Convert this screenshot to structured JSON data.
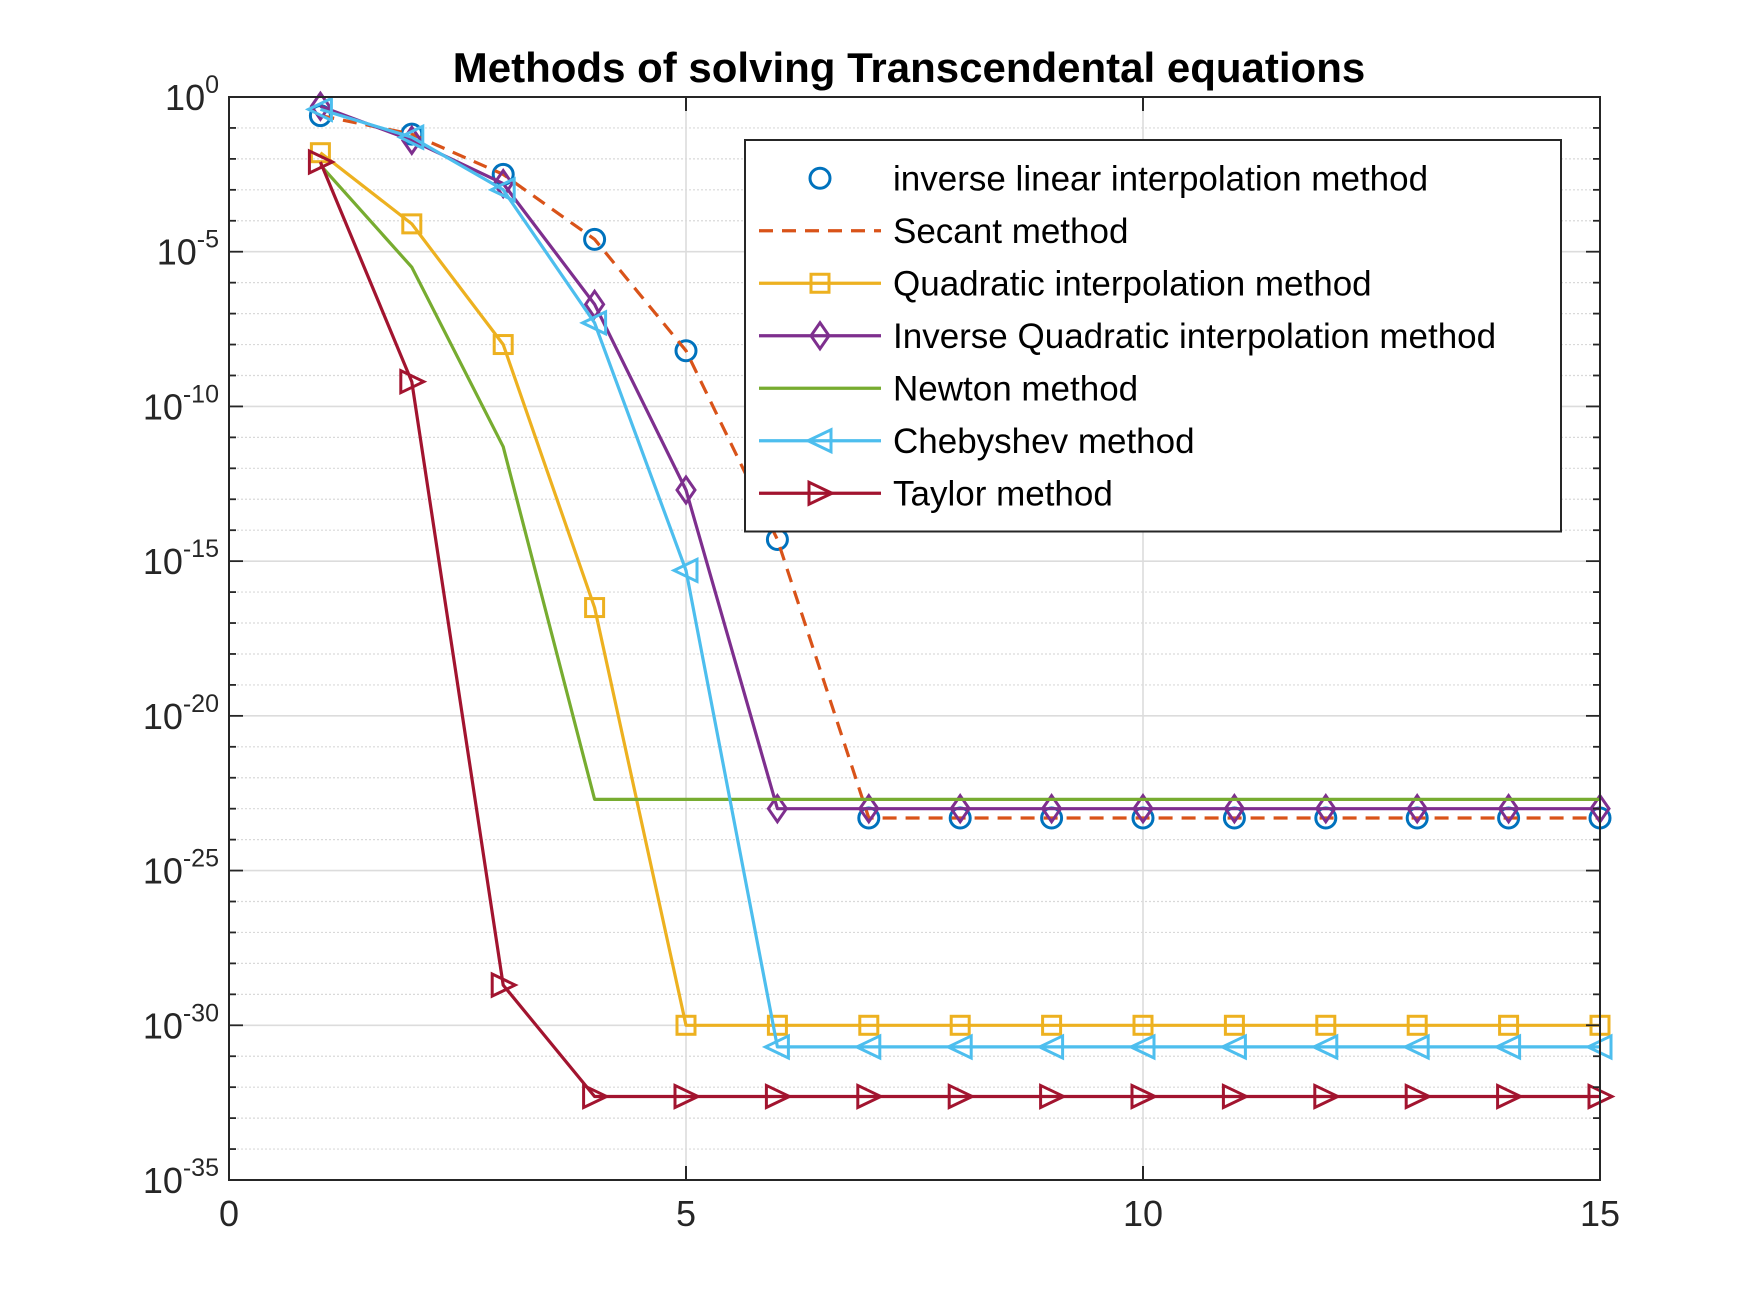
{
  "chart_data": {
    "type": "line",
    "title": "Methods of solving Transcendental equations",
    "xlabel": "",
    "ylabel": "",
    "xlim": [
      0,
      15
    ],
    "ylim_exponent": [
      -35,
      0
    ],
    "yscale": "log",
    "grid": true,
    "legend_position": "top-right",
    "x_ticks": [
      "0",
      "5",
      "10",
      "15"
    ],
    "y_ticks": [
      {
        "base": "10",
        "exp": "0"
      },
      {
        "base": "10",
        "exp": "-5"
      },
      {
        "base": "10",
        "exp": "-10"
      },
      {
        "base": "10",
        "exp": "-15"
      },
      {
        "base": "10",
        "exp": "-20"
      },
      {
        "base": "10",
        "exp": "-25"
      },
      {
        "base": "10",
        "exp": "-30"
      },
      {
        "base": "10",
        "exp": "-35"
      }
    ],
    "x": [
      1,
      2,
      3,
      4,
      5,
      6,
      7,
      8,
      9,
      10,
      11,
      12,
      13,
      14,
      15
    ],
    "series": [
      {
        "name": "inverse linear interpolation method",
        "color": "#0072BD",
        "line": "none",
        "marker": "circle",
        "log10_values": [
          -0.6,
          -1.2,
          -2.5,
          -4.6,
          -8.2,
          -14.3,
          -23.3,
          -23.3,
          -23.3,
          -23.3,
          -23.3,
          -23.3,
          -23.3,
          -23.3,
          -23.3
        ]
      },
      {
        "name": "Secant method",
        "color": "#D95319",
        "line": "dashed",
        "marker": "none",
        "log10_values": [
          -0.6,
          -1.2,
          -2.5,
          -4.6,
          -8.2,
          -14.3,
          -23.3,
          -23.3,
          -23.3,
          -23.3,
          -23.3,
          -23.3,
          -23.3,
          -23.3,
          -23.3
        ]
      },
      {
        "name": "Quadratic interpolation method",
        "color": "#EDB120",
        "line": "solid",
        "marker": "square",
        "log10_values": [
          -1.8,
          -4.1,
          -8.0,
          -16.5,
          -30.0,
          -30.0,
          -30.0,
          -30.0,
          -30.0,
          -30.0,
          -30.0,
          -30.0,
          -30.0,
          -30.0,
          -30.0
        ]
      },
      {
        "name": "Inverse Quadratic interpolation method",
        "color": "#7E2F8E",
        "line": "solid",
        "marker": "diamond",
        "log10_values": [
          -0.3,
          -1.4,
          -2.8,
          -6.7,
          -12.7,
          -23.0,
          -23.0,
          -23.0,
          -23.0,
          -23.0,
          -23.0,
          -23.0,
          -23.0,
          -23.0,
          -23.0
        ]
      },
      {
        "name": "Newton method",
        "color": "#77AC30",
        "line": "solid",
        "marker": "none",
        "log10_values": [
          -2.2,
          -5.5,
          -11.3,
          -22.7,
          -22.7,
          -22.7,
          -22.7,
          -22.7,
          -22.7,
          -22.7,
          -22.7,
          -22.7,
          -22.7,
          -22.7,
          -22.7
        ]
      },
      {
        "name": "Chebyshev method",
        "color": "#4DBEEE",
        "line": "solid",
        "marker": "triangle-left",
        "log10_values": [
          -0.4,
          -1.3,
          -3.0,
          -7.3,
          -15.3,
          -30.7,
          -30.7,
          -30.7,
          -30.7,
          -30.7,
          -30.7,
          -30.7,
          -30.7,
          -30.7,
          -30.7
        ]
      },
      {
        "name": "Taylor method",
        "color": "#A2142F",
        "line": "solid",
        "marker": "triangle-right",
        "log10_values": [
          -2.1,
          -9.2,
          -28.7,
          -32.3,
          -32.3,
          -32.3,
          -32.3,
          -32.3,
          -32.3,
          -32.3,
          -32.3,
          -32.3,
          -32.3,
          -32.3,
          -32.3
        ]
      }
    ]
  }
}
